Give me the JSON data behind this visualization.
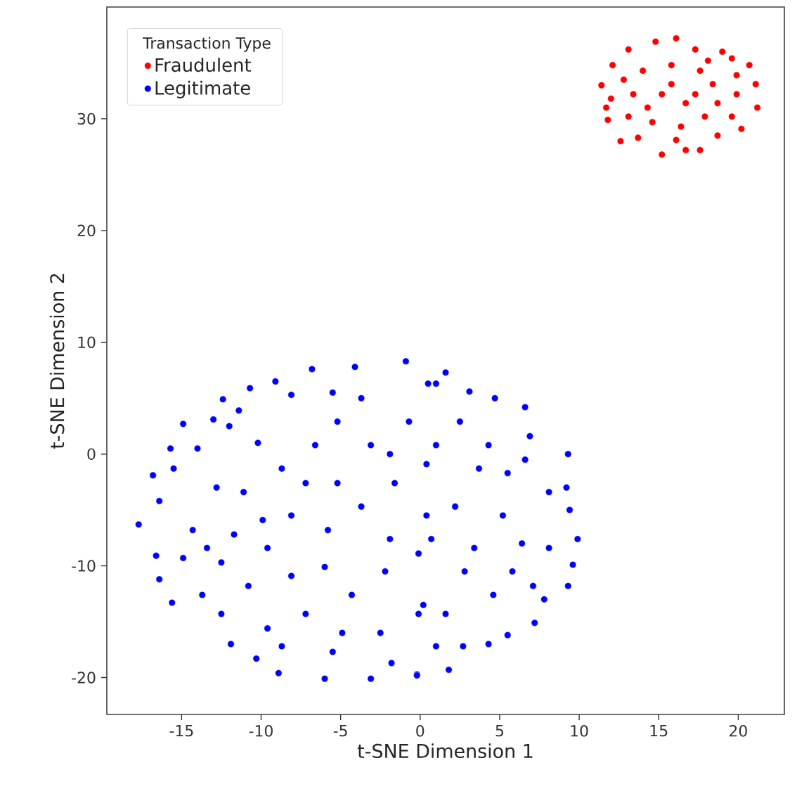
{
  "chart_data": {
    "type": "scatter",
    "xlabel": "t-SNE Dimension 1",
    "ylabel": "t-SNE Dimension 2",
    "legend_title": "Transaction Type",
    "legend": "top left",
    "marker": "circle",
    "grid": false,
    "xlim": [
      -19.7,
      22.9
    ],
    "ylim": [
      -23.3,
      40.0
    ],
    "xticks": [
      -15,
      -10,
      -5,
      0,
      5,
      10,
      15,
      20
    ],
    "yticks": [
      -20,
      -10,
      0,
      10,
      20,
      30
    ],
    "series": [
      {
        "name": "Fraudulent",
        "color": "#ff0000",
        "x": [
          16.1,
          13.1,
          14.8,
          17.3,
          19.0,
          12.1,
          11.4,
          12.0,
          11.8,
          12.6,
          13.7,
          15.2,
          16.7,
          17.6,
          18.7,
          20.2,
          21.2,
          21.1,
          20.7,
          19.6,
          14.0,
          15.8,
          17.6,
          18.4,
          13.4,
          15.2,
          16.7,
          18.7,
          19.9,
          13.1,
          14.6,
          16.4,
          17.9,
          19.6,
          15.8,
          17.3,
          14.3,
          18.1,
          12.8,
          16.1,
          11.7,
          19.9
        ],
        "values": [
          37.2,
          36.2,
          36.9,
          36.2,
          36.0,
          34.8,
          33.0,
          31.8,
          29.9,
          28.0,
          28.3,
          26.8,
          27.2,
          27.2,
          28.5,
          29.1,
          31.0,
          33.1,
          34.8,
          35.4,
          34.3,
          34.8,
          34.3,
          33.1,
          32.2,
          32.2,
          31.4,
          31.4,
          32.2,
          30.2,
          29.7,
          29.3,
          30.2,
          30.2,
          33.1,
          32.2,
          31.0,
          35.2,
          33.5,
          28.1,
          31.0,
          33.9
        ]
      },
      {
        "name": "Legitimate",
        "color": "#0000ff",
        "x": [
          -6.8,
          -4.1,
          -0.9,
          -9.1,
          -10.7,
          -12.4,
          -8.1,
          -14.9,
          -11.4,
          -13.0,
          -15.7,
          -14.0,
          -12.0,
          -16.8,
          -15.5,
          -16.4,
          -17.7,
          -16.6,
          -16.4,
          -15.6,
          -13.7,
          -11.9,
          -10.3,
          -8.9,
          -6.0,
          -3.1,
          -1.8,
          -0.2,
          1.0,
          -5.5,
          -3.7,
          -10.2,
          -8.7,
          -12.8,
          -14.3,
          -11.1,
          -6.6,
          -5.2,
          -3.1,
          -0.7,
          -8.1,
          -5.8,
          -3.7,
          -1.6,
          0.4,
          -9.6,
          -12.5,
          -10.8,
          -8.1,
          -6.0,
          -4.3,
          -2.2,
          -0.1,
          -7.2,
          -9.6,
          -12.5,
          -4.9,
          -2.5,
          -0.1,
          -8.7,
          -5.5,
          -13.4,
          -14.9,
          -11.7,
          -1.9,
          0.4,
          -7.2,
          -9.9,
          -5.2,
          -1.9,
          1.6,
          0.5,
          3.1,
          4.7,
          6.6,
          2.5,
          6.9,
          9.3,
          6.6,
          9.2,
          9.4,
          9.9,
          8.1,
          9.6,
          9.3,
          7.2,
          7.8,
          5.5,
          4.3,
          2.7,
          1.8,
          -0.2,
          1.0,
          6.4,
          5.2,
          3.7,
          2.2,
          0.7,
          2.8,
          4.6,
          5.8,
          0.2,
          1.6,
          3.4,
          5.5,
          8.1,
          7.1,
          4.3,
          1.0
        ],
        "values": [
          7.6,
          7.8,
          8.3,
          6.5,
          5.9,
          4.9,
          5.3,
          2.7,
          3.9,
          3.1,
          0.5,
          0.5,
          2.5,
          -1.9,
          -1.3,
          -4.2,
          -6.3,
          -9.1,
          -11.2,
          -13.3,
          -12.6,
          -17.0,
          -18.3,
          -19.6,
          -20.1,
          -20.1,
          -18.7,
          -19.7,
          6.3,
          5.5,
          5.0,
          1.0,
          -1.3,
          -3.0,
          -6.8,
          -3.4,
          0.8,
          -2.6,
          0.8,
          2.9,
          -5.5,
          -6.8,
          -4.7,
          -2.6,
          -0.9,
          -8.4,
          -9.7,
          -11.8,
          -10.9,
          -10.1,
          -12.6,
          -10.5,
          -8.9,
          -14.3,
          -15.6,
          -14.3,
          -16.0,
          -16.0,
          -14.3,
          -17.2,
          -17.7,
          -8.4,
          -9.3,
          -7.2,
          -7.6,
          -5.5,
          -2.6,
          -5.9,
          2.9,
          0.0,
          7.3,
          6.3,
          5.6,
          5.0,
          4.2,
          2.9,
          1.6,
          0.0,
          -0.5,
          -3.0,
          -5.0,
          -7.6,
          -3.4,
          -9.9,
          -11.8,
          -15.1,
          -13.0,
          -16.2,
          -17.0,
          -17.2,
          -19.3,
          -19.8,
          -17.2,
          -8.0,
          -5.5,
          -1.3,
          -4.7,
          -7.6,
          -10.5,
          -12.6,
          -10.5,
          -13.5,
          -14.3,
          -8.4,
          -1.7,
          -8.4,
          -11.8,
          0.8,
          0.8
        ]
      }
    ]
  }
}
